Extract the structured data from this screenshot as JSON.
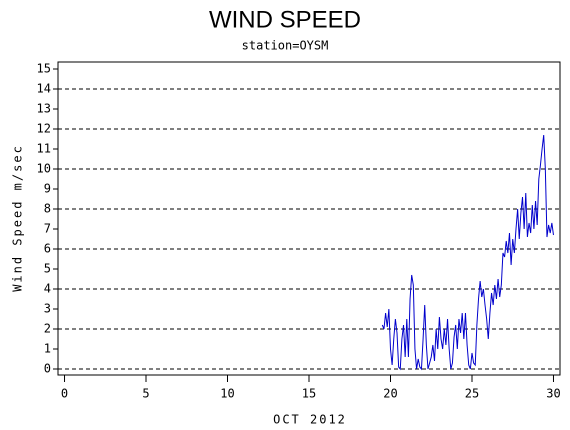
{
  "chart_data": {
    "type": "line",
    "title": "WIND SPEED",
    "subtitle": "station=OYSM",
    "x_label": "OCT 2012",
    "y_label": "Wind Speed m/sec",
    "xlim": [
      -0.4,
      30.4
    ],
    "ylim": [
      -0.3,
      15.35
    ],
    "xticks": [
      0,
      5,
      10,
      15,
      20,
      25,
      30
    ],
    "yticks": [
      0,
      1,
      2,
      3,
      4,
      5,
      6,
      7,
      8,
      9,
      10,
      11,
      12,
      13,
      14,
      15
    ],
    "grid_lines": [
      0,
      2,
      4,
      6,
      8,
      10,
      12,
      14
    ],
    "x": [
      19.5,
      19.6,
      19.7,
      19.8,
      19.9,
      20.0,
      20.1,
      20.2,
      20.3,
      20.4,
      20.5,
      20.6,
      20.7,
      20.8,
      20.9,
      21.0,
      21.1,
      21.2,
      21.3,
      21.4,
      21.5,
      21.6,
      21.7,
      21.8,
      21.9,
      22.0,
      22.1,
      22.2,
      22.3,
      22.4,
      22.5,
      22.6,
      22.7,
      22.8,
      22.9,
      23.0,
      23.1,
      23.2,
      23.3,
      23.4,
      23.5,
      23.6,
      23.7,
      23.8,
      23.9,
      24.0,
      24.1,
      24.2,
      24.3,
      24.4,
      24.5,
      24.6,
      24.7,
      24.8,
      24.9,
      25.0,
      25.1,
      25.2,
      25.3,
      25.4,
      25.5,
      25.6,
      25.7,
      25.8,
      25.9,
      26.0,
      26.1,
      26.2,
      26.3,
      26.4,
      26.5,
      26.6,
      26.7,
      26.8,
      26.9,
      27.0,
      27.1,
      27.2,
      27.3,
      27.4,
      27.5,
      27.6,
      27.7,
      27.8,
      27.9,
      28.0,
      28.1,
      28.2,
      28.3,
      28.4,
      28.5,
      28.6,
      28.7,
      28.8,
      28.9,
      29.0,
      29.1,
      29.2,
      29.3,
      29.4,
      29.5,
      29.6,
      29.7,
      29.8,
      29.9,
      30.0
    ],
    "series": [
      {
        "name": "Wind Speed",
        "color": "#0000cc",
        "values": [
          2.2,
          2.0,
          2.8,
          2.1,
          3.0,
          1.0,
          0.2,
          1.5,
          2.5,
          1.8,
          0.1,
          0.0,
          1.5,
          2.2,
          0.6,
          2.5,
          0.6,
          3.5,
          4.7,
          4.2,
          1.0,
          0.0,
          0.5,
          0.1,
          0.0,
          1.5,
          3.2,
          1.2,
          0.0,
          0.3,
          0.6,
          1.2,
          0.4,
          2.0,
          1.0,
          2.6,
          1.5,
          1.0,
          2.0,
          1.2,
          2.5,
          1.0,
          0.0,
          0.3,
          1.6,
          2.2,
          1.0,
          2.5,
          1.8,
          2.8,
          1.5,
          2.8,
          1.2,
          0.2,
          0.0,
          0.8,
          0.3,
          0.2,
          2.2,
          3.5,
          4.4,
          3.6,
          4.0,
          3.2,
          2.5,
          1.5,
          2.8,
          3.8,
          3.2,
          4.2,
          3.5,
          4.5,
          3.6,
          4.2,
          5.8,
          5.6,
          6.4,
          5.8,
          6.8,
          5.2,
          6.5,
          5.8,
          7.0,
          8.0,
          6.5,
          7.8,
          8.6,
          7.0,
          8.8,
          6.6,
          7.3,
          6.8,
          8.2,
          7.0,
          8.4,
          7.2,
          9.5,
          10.2,
          11.0,
          11.7,
          10.0,
          6.6,
          7.2,
          6.8,
          7.3,
          6.7
        ]
      }
    ]
  }
}
